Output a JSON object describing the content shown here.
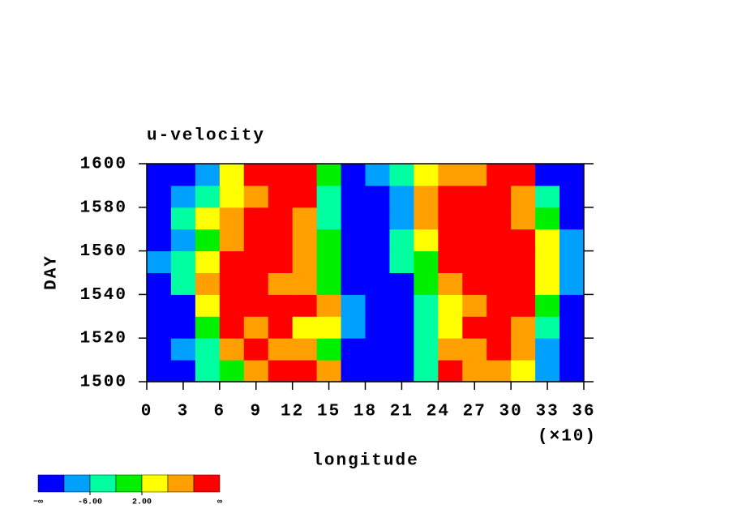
{
  "chart_data": {
    "type": "heatmap",
    "title": "u-velocity",
    "x_label": "longitude",
    "x_multiplier_label": "(×10)",
    "y_label": "DAY",
    "x": [
      1,
      3,
      5,
      7,
      9,
      11,
      13,
      15,
      17,
      19,
      21,
      23,
      25,
      27,
      29,
      31,
      33,
      35
    ],
    "y": [
      1505,
      1515,
      1525,
      1535,
      1545,
      1555,
      1565,
      1575,
      1585,
      1595
    ],
    "z": [
      [
        -12,
        -12,
        -4,
        0,
        8,
        12,
        12,
        8,
        -12,
        -12,
        -12,
        -4,
        12,
        8,
        8,
        4,
        -8,
        -12
      ],
      [
        -12,
        -8,
        -4,
        8,
        12,
        8,
        8,
        0,
        -12,
        -12,
        -12,
        -4,
        8,
        8,
        12,
        8,
        -8,
        -12
      ],
      [
        -12,
        -12,
        0,
        12,
        8,
        12,
        4,
        4,
        -8,
        -12,
        -12,
        -4,
        4,
        12,
        12,
        8,
        -4,
        -12
      ],
      [
        -12,
        -12,
        4,
        12,
        12,
        12,
        12,
        8,
        -8,
        -12,
        -12,
        -4,
        4,
        8,
        12,
        12,
        0,
        -12
      ],
      [
        -12,
        -4,
        8,
        12,
        12,
        8,
        8,
        0,
        -12,
        -12,
        -12,
        0,
        8,
        12,
        12,
        12,
        4,
        -8
      ],
      [
        -8,
        -4,
        4,
        12,
        12,
        12,
        8,
        0,
        -12,
        -12,
        -4,
        0,
        12,
        12,
        12,
        12,
        4,
        -8
      ],
      [
        -12,
        -8,
        0,
        8,
        12,
        12,
        8,
        0,
        -12,
        -12,
        -4,
        4,
        12,
        12,
        12,
        12,
        4,
        -8
      ],
      [
        -12,
        -4,
        4,
        8,
        12,
        12,
        8,
        -4,
        -12,
        -12,
        -8,
        8,
        12,
        12,
        12,
        8,
        0,
        -12
      ],
      [
        -12,
        -8,
        -4,
        4,
        8,
        12,
        12,
        -4,
        -12,
        -12,
        -8,
        8,
        12,
        12,
        12,
        8,
        -4,
        -12
      ],
      [
        -12,
        -12,
        -8,
        4,
        12,
        12,
        12,
        0,
        -12,
        -8,
        -4,
        4,
        8,
        8,
        12,
        12,
        -12,
        -12
      ]
    ],
    "levels": [
      -10,
      -6,
      -2,
      2,
      6,
      10
    ],
    "colors": [
      "#0000ff",
      "#00a0ff",
      "#00ffa0",
      "#00f000",
      "#ffff00",
      "#ffa000",
      "#ff0000"
    ],
    "colorbar_ticks": [
      {
        "value": -6,
        "label": "-6.00"
      },
      {
        "value": 2,
        "label": "2.00"
      }
    ],
    "colorbar_min_label": "−∞",
    "colorbar_max_label": "∞",
    "xlim": [
      0,
      36
    ],
    "xticks": [
      0,
      3,
      6,
      9,
      12,
      15,
      18,
      21,
      24,
      27,
      30,
      33,
      36
    ],
    "ylim": [
      1500,
      1600
    ],
    "yticks": [
      1500,
      1520,
      1540,
      1560,
      1580,
      1600
    ]
  }
}
